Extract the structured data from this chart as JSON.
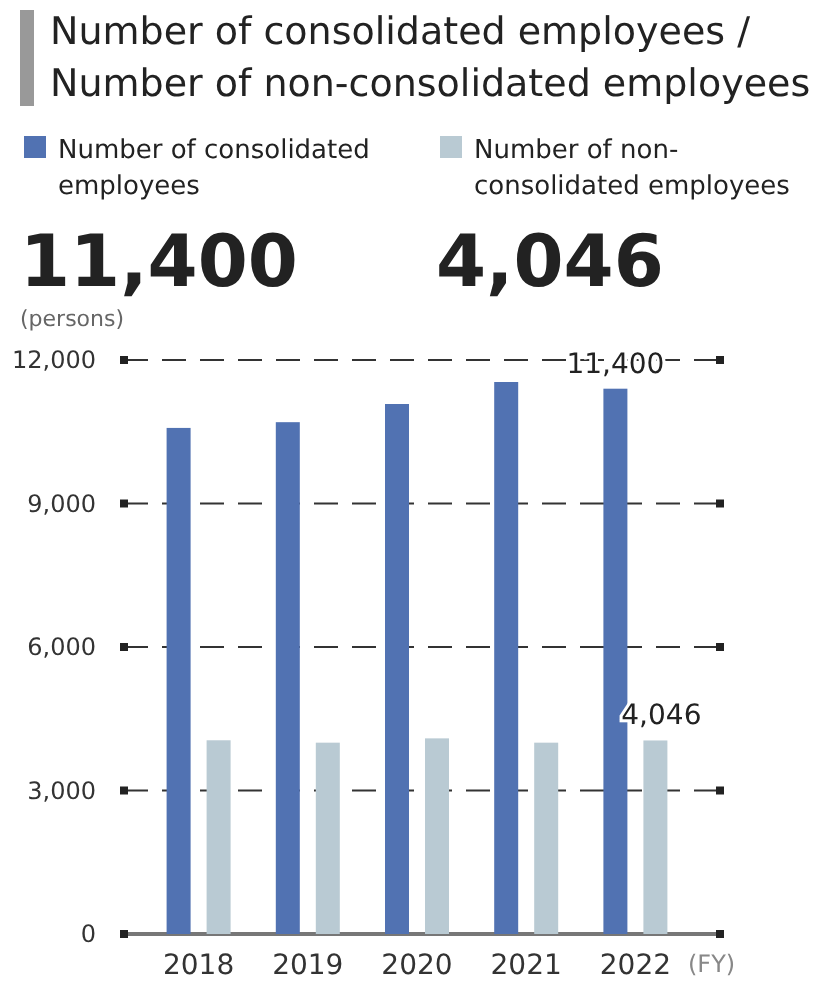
{
  "chart_data": {
    "type": "bar",
    "title": "Number of consolidated employees / Number of non-consolidated employees",
    "categories": [
      "2018",
      "2019",
      "2020",
      "2021",
      "2022"
    ],
    "series": [
      {
        "name": "Number of consolidated employees",
        "color": "#5172b2",
        "values": [
          10580,
          10700,
          11080,
          11540,
          11400
        ],
        "value_labels": [
          null,
          null,
          null,
          null,
          "11,400"
        ]
      },
      {
        "name": "Number of non-consolidated employees",
        "color": "#b9cad3",
        "values": [
          4050,
          4000,
          4090,
          4000,
          4046
        ],
        "value_labels": [
          null,
          null,
          null,
          null,
          "4,046"
        ]
      }
    ],
    "annotations": [
      "11,400",
      "4,046"
    ],
    "ylabel": "(persons)",
    "xlabel": "(FY)",
    "ylim": [
      0,
      12000
    ],
    "yticks": [
      0,
      {
        "value": 3000,
        "label": "3,000"
      },
      {
        "value": 6000,
        "label": "6,000"
      },
      {
        "value": 9000,
        "label": "9,000"
      },
      {
        "value": 12000,
        "label": "12,000"
      }
    ],
    "grid": "y",
    "legend": "top"
  }
}
